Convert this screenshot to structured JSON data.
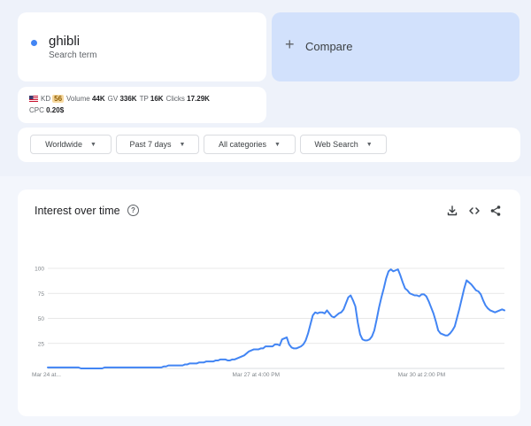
{
  "search_term": {
    "name": "ghibli",
    "type_label": "Search term",
    "dot_color": "#4285f4"
  },
  "compare": {
    "plus": "+",
    "label": "Compare"
  },
  "metrics": {
    "flag_icon": "us-flag-icon",
    "kd_label": "KD",
    "kd_value": "56",
    "volume_label": "Volume",
    "volume_value": "44K",
    "gv_label": "GV",
    "gv_value": "336K",
    "tp_label": "TP",
    "tp_value": "16K",
    "clicks_label": "Clicks",
    "clicks_value": "17.29K",
    "cpc_label": "CPC",
    "cpc_value": "0.20$"
  },
  "filters": {
    "region": "Worldwide",
    "time": "Past 7 days",
    "category": "All categories",
    "property": "Web Search"
  },
  "chart_panel": {
    "title": "Interest over time",
    "help_icon": "help-circle-icon",
    "download_icon": "download-icon",
    "embed_icon": "embed-code-icon",
    "share_icon": "share-icon"
  },
  "chart_data": {
    "type": "line",
    "title": "",
    "xlabel": "",
    "ylabel": "",
    "ylim": [
      0,
      100
    ],
    "y_ticks": [
      25,
      50,
      75,
      100
    ],
    "x_tick_labels": [
      {
        "label": "Mar 24 at...",
        "index": 0
      },
      {
        "label": "Mar 27 at 4:00 PM",
        "index": 88
      },
      {
        "label": "Mar 30 at 2:00 PM",
        "index": 158
      }
    ],
    "grid": true,
    "line_color": "#4285f4",
    "series": [
      {
        "values": [
          1,
          1,
          1,
          1,
          1,
          1,
          1,
          1,
          1,
          1,
          1,
          1,
          1,
          1,
          0,
          0,
          0,
          0,
          0,
          0,
          0,
          0,
          0,
          0,
          1,
          1,
          1,
          1,
          1,
          1,
          1,
          1,
          1,
          1,
          1,
          1,
          1,
          1,
          1,
          1,
          1,
          1,
          1,
          1,
          1,
          1,
          1,
          1,
          1,
          2,
          2,
          3,
          3,
          3,
          3,
          3,
          3,
          3,
          4,
          4,
          5,
          5,
          5,
          5,
          6,
          6,
          6,
          7,
          7,
          7,
          7,
          8,
          8,
          9,
          9,
          9,
          8,
          8,
          9,
          9,
          10,
          11,
          12,
          13,
          15,
          17,
          18,
          19,
          19,
          19,
          20,
          20,
          22,
          22,
          22,
          22,
          24,
          24,
          23,
          29,
          30,
          31,
          24,
          21,
          20,
          20,
          21,
          22,
          24,
          28,
          35,
          44,
          53,
          56,
          55,
          56,
          56,
          55,
          58,
          55,
          52,
          51,
          53,
          55,
          56,
          59,
          65,
          71,
          73,
          68,
          62,
          46,
          34,
          29,
          28,
          28,
          29,
          32,
          38,
          49,
          61,
          71,
          80,
          90,
          97,
          99,
          97,
          98,
          99,
          93,
          86,
          80,
          78,
          75,
          74,
          73,
          73,
          72,
          74,
          74,
          72,
          67,
          61,
          55,
          47,
          38,
          35,
          34,
          33,
          33,
          35,
          38,
          42,
          51,
          60,
          70,
          80,
          88,
          86,
          84,
          81,
          78,
          77,
          74,
          68,
          63,
          60,
          58,
          57,
          56,
          57,
          58,
          59,
          58
        ]
      }
    ]
  }
}
